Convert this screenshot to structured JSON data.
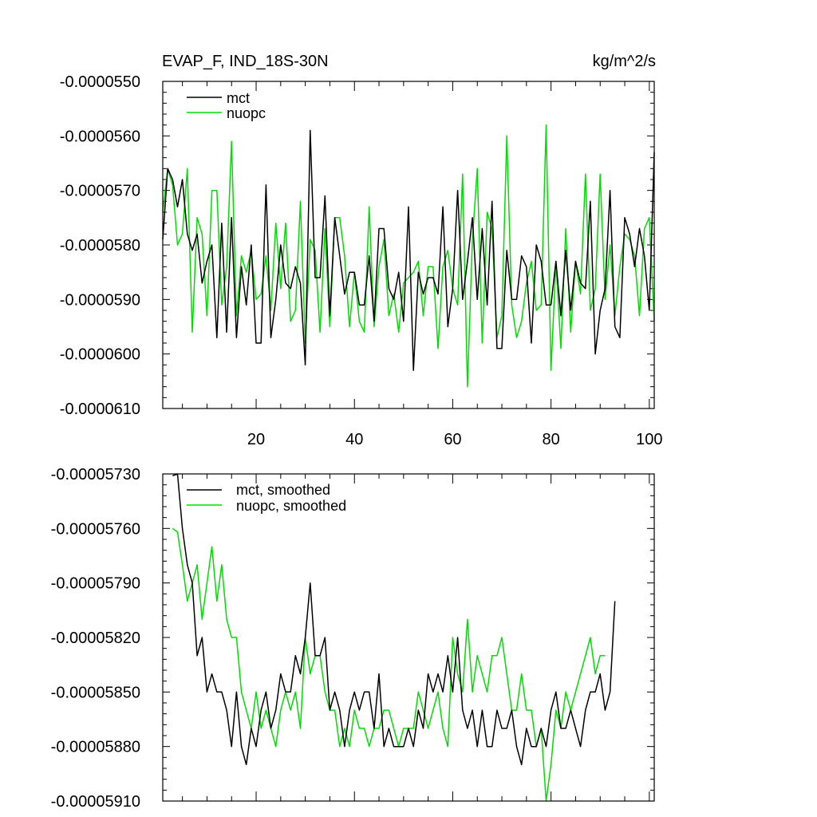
{
  "colors": {
    "mct": "#000000",
    "nuopc": "#00dd00",
    "frame": "#000000",
    "background": "#ffffff"
  },
  "chart_data": [
    {
      "type": "line",
      "title": "EVAP_F, IND_18S-30N",
      "units": "kg/m^2/s",
      "xlabel": "",
      "ylabel": "",
      "xlim": [
        1,
        101
      ],
      "ylim": [
        -6.1e-05,
        -5.5e-05
      ],
      "x_ticks": [
        20,
        40,
        60,
        80,
        100
      ],
      "x_tick_labels": [
        "20",
        "40",
        "60",
        "80",
        "100"
      ],
      "y_ticks": [
        -5.5e-05,
        -5.6e-05,
        -5.7e-05,
        -5.8e-05,
        -5.9e-05,
        -6e-05,
        -6.1e-05
      ],
      "y_tick_labels": [
        "-0.0000550",
        "-0.0000560",
        "-0.0000570",
        "-0.0000580",
        "-0.0000590",
        "-0.0000600",
        "-0.0000610"
      ],
      "legend_position": "top-left",
      "legend": [
        "mct",
        "nuopc"
      ],
      "series": [
        {
          "name": "mct",
          "color_key": "mct",
          "x_start": 1,
          "values": [
            -5.79e-05,
            -5.66e-05,
            -5.68e-05,
            -5.73e-05,
            -5.68e-05,
            -5.78e-05,
            -5.81e-05,
            -5.78e-05,
            -5.87e-05,
            -5.83e-05,
            -5.8e-05,
            -5.97e-05,
            -5.76e-05,
            -5.96e-05,
            -5.75e-05,
            -5.97e-05,
            -5.84e-05,
            -5.91e-05,
            -5.8e-05,
            -5.98e-05,
            -5.98e-05,
            -5.69e-05,
            -5.97e-05,
            -5.9e-05,
            -5.8e-05,
            -5.87e-05,
            -5.88e-05,
            -5.84e-05,
            -5.87e-05,
            -6.02e-05,
            -5.59e-05,
            -5.86e-05,
            -5.86e-05,
            -5.71e-05,
            -5.93e-05,
            -5.75e-05,
            -5.82e-05,
            -5.89e-05,
            -5.85e-05,
            -5.85e-05,
            -5.91e-05,
            -5.91e-05,
            -5.82e-05,
            -5.94e-05,
            -5.77e-05,
            -5.77e-05,
            -5.88e-05,
            -5.9e-05,
            -5.85e-05,
            -5.94e-05,
            -5.73e-05,
            -6.03e-05,
            -5.85e-05,
            -5.89e-05,
            -5.86e-05,
            -5.86e-05,
            -5.89e-05,
            -5.73e-05,
            -5.95e-05,
            -5.88e-05,
            -5.7e-05,
            -5.9e-05,
            -5.83e-05,
            -5.75e-05,
            -5.9e-05,
            -5.77e-05,
            -5.91e-05,
            -5.72e-05,
            -5.99e-05,
            -5.99e-05,
            -5.81e-05,
            -5.9e-05,
            -5.9e-05,
            -5.82e-05,
            -5.84e-05,
            -5.98e-05,
            -5.8e-05,
            -5.83e-05,
            -5.91e-05,
            -5.91e-05,
            -5.83e-05,
            -5.93e-05,
            -5.81e-05,
            -5.92e-05,
            -5.83e-05,
            -5.87e-05,
            -5.88e-05,
            -5.72e-05,
            -6e-05,
            -5.92e-05,
            -5.88e-05,
            -5.7e-05,
            -5.95e-05,
            -5.97e-05,
            -5.75e-05,
            -5.78e-05,
            -5.84e-05,
            -5.77e-05,
            -5.82e-05,
            -5.92e-05,
            -5.63e-05
          ]
        },
        {
          "name": "nuopc",
          "color_key": "nuopc",
          "x_start": 1,
          "values": [
            -5.74e-05,
            -5.66e-05,
            -5.69e-05,
            -5.8e-05,
            -5.78e-05,
            -5.66e-05,
            -5.96e-05,
            -5.75e-05,
            -5.78e-05,
            -5.93e-05,
            -5.7e-05,
            -5.7e-05,
            -5.91e-05,
            -5.84e-05,
            -5.61e-05,
            -5.93e-05,
            -5.82e-05,
            -5.85e-05,
            -5.81e-05,
            -5.9e-05,
            -5.89e-05,
            -5.82e-05,
            -5.92e-05,
            -5.76e-05,
            -5.88e-05,
            -5.76e-05,
            -5.94e-05,
            -5.92e-05,
            -5.72e-05,
            -5.98e-05,
            -5.79e-05,
            -5.81e-05,
            -5.96e-05,
            -5.77e-05,
            -5.95e-05,
            -5.75e-05,
            -5.75e-05,
            -5.82e-05,
            -5.95e-05,
            -5.85e-05,
            -5.94e-05,
            -5.96e-05,
            -5.73e-05,
            -5.95e-05,
            -5.84e-05,
            -5.79e-05,
            -5.93e-05,
            -5.89e-05,
            -5.96e-05,
            -5.87e-05,
            -5.86e-05,
            -5.85e-05,
            -5.83e-05,
            -5.93e-05,
            -5.84e-05,
            -5.84e-05,
            -5.99e-05,
            -5.84e-05,
            -5.81e-05,
            -5.88e-05,
            -5.91e-05,
            -5.67e-05,
            -6.06e-05,
            -5.79e-05,
            -5.66e-05,
            -5.98e-05,
            -5.74e-05,
            -5.77e-05,
            -5.97e-05,
            -5.93e-05,
            -5.6e-05,
            -5.91e-05,
            -5.97e-05,
            -5.94e-05,
            -5.87e-05,
            -5.83e-05,
            -5.92e-05,
            -5.91e-05,
            -5.58e-05,
            -6.03e-05,
            -5.83e-05,
            -5.99e-05,
            -5.77e-05,
            -5.96e-05,
            -5.83e-05,
            -5.89e-05,
            -5.67e-05,
            -5.92e-05,
            -5.88e-05,
            -5.67e-05,
            -5.9e-05,
            -5.8e-05,
            -5.93e-05,
            -5.84e-05,
            -5.78e-05,
            -5.79e-05,
            -5.82e-05,
            -5.93e-05,
            -5.77e-05,
            -5.75e-05,
            -5.94e-05
          ]
        }
      ]
    },
    {
      "type": "line",
      "title": "",
      "xlabel": "",
      "ylabel": "",
      "xlim": [
        1,
        101
      ],
      "ylim": [
        -5.91e-05,
        -5.73e-05
      ],
      "x_ticks": [
        20,
        40,
        60,
        80,
        100
      ],
      "x_tick_labels": [
        "",
        "",
        "",
        "",
        ""
      ],
      "y_ticks": [
        -5.73e-05,
        -5.76e-05,
        -5.79e-05,
        -5.82e-05,
        -5.85e-05,
        -5.88e-05,
        -5.91e-05
      ],
      "y_tick_labels": [
        "-0.00005730",
        "-0.00005760",
        "-0.00005790",
        "-0.00005820",
        "-0.00005850",
        "-0.00005880",
        "-0.00005910"
      ],
      "legend_position": "top-left",
      "legend": [
        "mct, smoothed",
        "nuopc, smoothed"
      ],
      "series": [
        {
          "name": "mct, smoothed",
          "color_key": "mct",
          "x_start": 3,
          "values": [
            -5.731e-05,
            -5.729e-05,
            -5.76e-05,
            -5.78e-05,
            -5.79e-05,
            -5.83e-05,
            -5.82e-05,
            -5.85e-05,
            -5.84e-05,
            -5.85e-05,
            -5.85e-05,
            -5.86e-05,
            -5.88e-05,
            -5.85e-05,
            -5.88e-05,
            -5.89e-05,
            -5.87e-05,
            -5.88e-05,
            -5.86e-05,
            -5.85e-05,
            -5.87e-05,
            -5.86e-05,
            -5.84e-05,
            -5.85e-05,
            -5.85e-05,
            -5.83e-05,
            -5.84e-05,
            -5.82e-05,
            -5.79e-05,
            -5.83e-05,
            -5.83e-05,
            -5.82e-05,
            -5.86e-05,
            -5.85e-05,
            -5.86e-05,
            -5.88e-05,
            -5.86e-05,
            -5.85e-05,
            -5.86e-05,
            -5.85e-05,
            -5.85e-05,
            -5.87e-05,
            -5.84e-05,
            -5.88e-05,
            -5.87e-05,
            -5.88e-05,
            -5.88e-05,
            -5.88e-05,
            -5.87e-05,
            -5.88e-05,
            -5.86e-05,
            -5.87e-05,
            -5.84e-05,
            -5.85e-05,
            -5.84e-05,
            -5.85e-05,
            -5.83e-05,
            -5.85e-05,
            -5.82e-05,
            -5.86e-05,
            -5.87e-05,
            -5.86e-05,
            -5.88e-05,
            -5.86e-05,
            -5.88e-05,
            -5.88e-05,
            -5.86e-05,
            -5.87e-05,
            -5.87e-05,
            -5.86e-05,
            -5.88e-05,
            -5.89e-05,
            -5.87e-05,
            -5.88e-05,
            -5.88e-05,
            -5.87e-05,
            -5.88e-05,
            -5.86e-05,
            -5.85e-05,
            -5.87e-05,
            -5.87e-05,
            -5.86e-05,
            -5.87e-05,
            -5.88e-05,
            -5.86e-05,
            -5.85e-05,
            -5.85e-05,
            -5.84e-05,
            -5.86e-05,
            -5.85e-05,
            -5.8e-05
          ]
        },
        {
          "name": "nuopc, smoothed",
          "color_key": "nuopc",
          "x_start": 3,
          "values": [
            -5.76e-05,
            -5.762e-05,
            -5.78e-05,
            -5.8e-05,
            -5.79e-05,
            -5.78e-05,
            -5.81e-05,
            -5.79e-05,
            -5.77e-05,
            -5.8e-05,
            -5.78e-05,
            -5.81e-05,
            -5.82e-05,
            -5.82e-05,
            -5.85e-05,
            -5.86e-05,
            -5.87e-05,
            -5.85e-05,
            -5.87e-05,
            -5.86e-05,
            -5.87e-05,
            -5.88e-05,
            -5.86e-05,
            -5.85e-05,
            -5.86e-05,
            -5.85e-05,
            -5.87e-05,
            -5.82e-05,
            -5.84e-05,
            -5.83e-05,
            -5.83e-05,
            -5.85e-05,
            -5.86e-05,
            -5.86e-05,
            -5.88e-05,
            -5.87e-05,
            -5.88e-05,
            -5.86e-05,
            -5.87e-05,
            -5.87e-05,
            -5.88e-05,
            -5.87e-05,
            -5.87e-05,
            -5.86e-05,
            -5.86e-05,
            -5.87e-05,
            -5.88e-05,
            -5.87e-05,
            -5.87e-05,
            -5.87e-05,
            -5.85e-05,
            -5.86e-05,
            -5.87e-05,
            -5.86e-05,
            -5.85e-05,
            -5.87e-05,
            -5.88e-05,
            -5.82e-05,
            -5.84e-05,
            -5.85e-05,
            -5.81e-05,
            -5.85e-05,
            -5.83e-05,
            -5.84e-05,
            -5.85e-05,
            -5.83e-05,
            -5.83e-05,
            -5.82e-05,
            -5.84e-05,
            -5.86e-05,
            -5.86e-05,
            -5.84e-05,
            -5.86e-05,
            -5.86e-05,
            -5.88e-05,
            -5.87e-05,
            -5.91e-05,
            -5.89e-05,
            -5.86e-05,
            -5.87e-05,
            -5.85e-05,
            -5.86e-05,
            -5.85e-05,
            -5.84e-05,
            -5.83e-05,
            -5.82e-05,
            -5.84e-05,
            -5.83e-05,
            -5.83e-05
          ]
        }
      ]
    }
  ]
}
